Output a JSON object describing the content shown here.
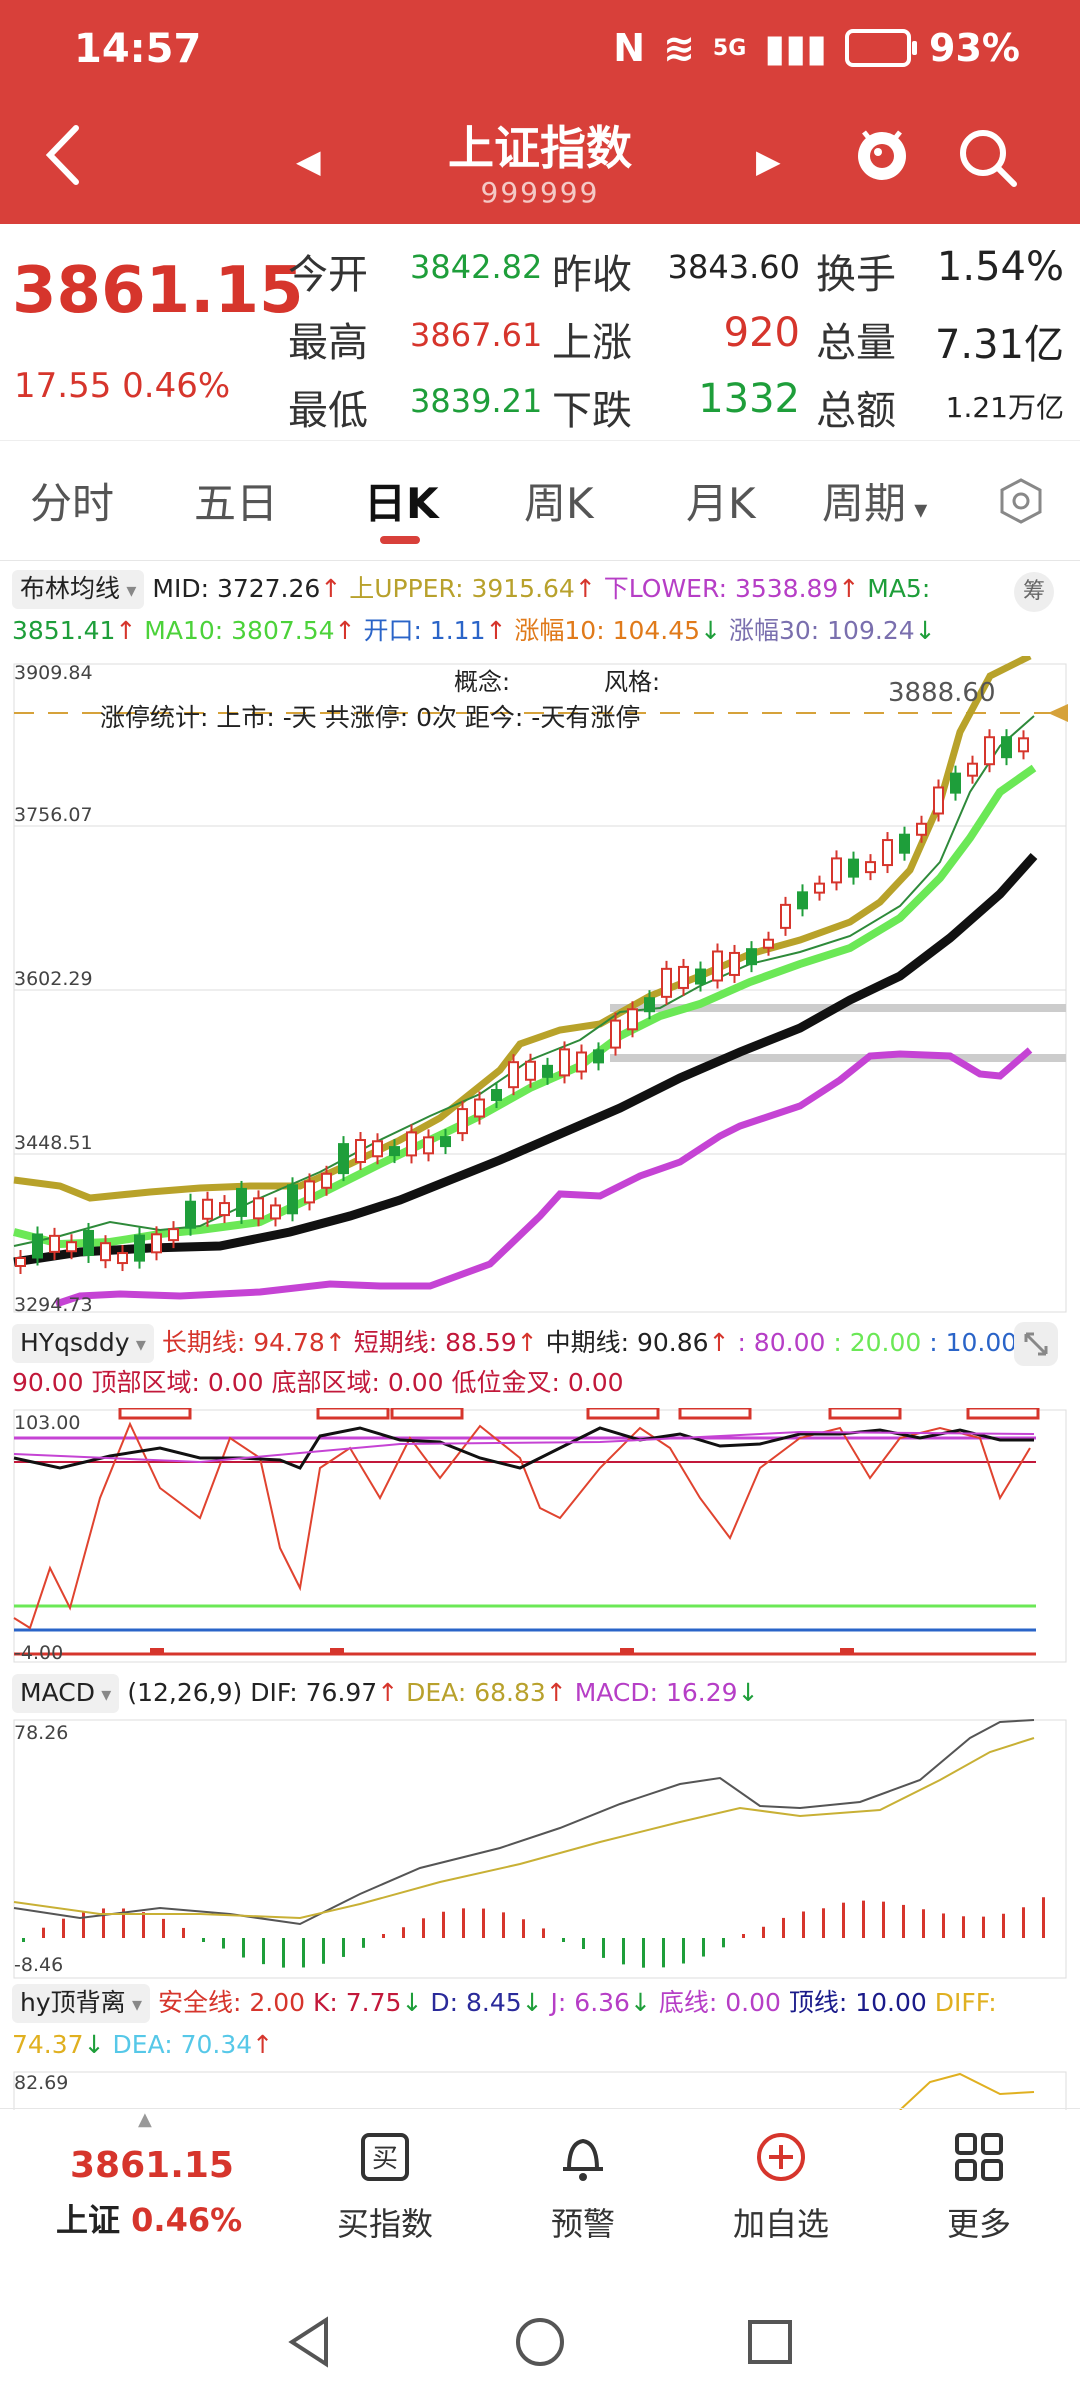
{
  "status": {
    "time": "14:57",
    "battery": "93%",
    "network": "5G"
  },
  "header": {
    "title": "上证指数",
    "code": "999999"
  },
  "quote": {
    "price": "3861.15",
    "change": "17.55",
    "change_pct": "0.46%",
    "items": [
      {
        "label": "今开",
        "value": "3842.82"
      },
      {
        "label": "昨收",
        "value": "3843.60"
      },
      {
        "label": "换手",
        "value": "1.54%"
      },
      {
        "label": "最高",
        "value": "3867.61"
      },
      {
        "label": "上涨",
        "value": "920"
      },
      {
        "label": "总量",
        "value": "7.31亿"
      },
      {
        "label": "最低",
        "value": "3839.21"
      },
      {
        "label": "下跌",
        "value": "1332"
      },
      {
        "label": "总额",
        "value": "1.21万亿"
      }
    ]
  },
  "tabs": [
    "分时",
    "五日",
    "日K",
    "周K",
    "月K",
    "周期"
  ],
  "boll": {
    "name": "布林均线",
    "mid": "MID: 3727.26",
    "upper": "上UPPER: 3915.64",
    "lower": "下LOWER: 3538.89",
    "ma5_label": "MA5:",
    "ma5_val": "3851.41",
    "ma10": "MA10: 3807.54",
    "open": "开口: 1.11",
    "zf10": "涨幅10: 104.45",
    "zf30": "涨幅30: 109.24",
    "side": "筹"
  },
  "kchart": {
    "y_labels": [
      "3909.84",
      "3756.07",
      "3602.29",
      "3448.51",
      "3294.73"
    ],
    "concept": "概念:",
    "style": "风格:",
    "limit_text": "涨停统计: 上市: -天 共涨停: 0次 距今: -天有涨停",
    "last_label": "3888.60"
  },
  "hy": {
    "name": "HYqsddy",
    "long": "长期线: 94.78",
    "short": "短期线: 88.59",
    "mid": "中期线: 90.86",
    "v80": ": 80.00",
    "v20": ": 20.00",
    "v10": ": 10.00",
    "v90": "90.00",
    "top": "顶部区域: 0.00",
    "bottom": "底部区域: 0.00",
    "gold": "低位金叉: 0.00",
    "y_top": "103.00",
    "y_bot": "-4.00"
  },
  "macd": {
    "name": "MACD",
    "params": "(12,26,9)",
    "dif": "DIF: 76.97",
    "dea": "DEA: 68.83",
    "macd": "MACD: 16.29",
    "y_top": "78.26",
    "y_bot": "-8.46"
  },
  "hydb": {
    "name": "hy顶背离",
    "safe": "安全线: 2.00",
    "k": "K: 7.75",
    "d": "D: 8.45",
    "j": "J: 6.36",
    "low": "底线: 0.00",
    "top": "顶线: 10.00",
    "diff": "DIFF:",
    "diff_val": "74.37",
    "dea": "DEA: 70.34",
    "y_top": "82.69"
  },
  "bottom": {
    "price": "3861.15",
    "name": "上证",
    "pct": "0.46%",
    "items": [
      "买指数",
      "预警",
      "加自选",
      "更多"
    ]
  },
  "colors": {
    "header": "#d8403a",
    "up": "#d6352c",
    "down": "#1e9e3a"
  }
}
